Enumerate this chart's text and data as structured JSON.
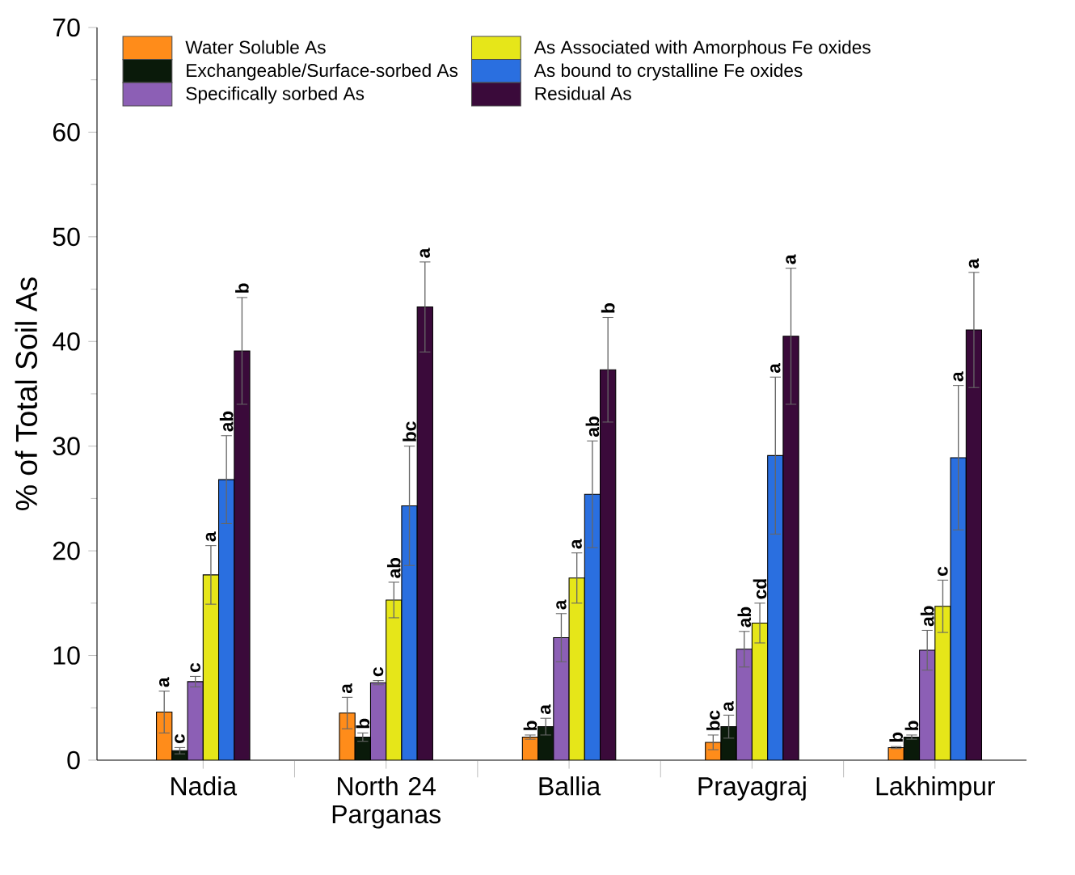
{
  "chart_data": {
    "type": "bar",
    "ylabel": "% of Total Soil As",
    "categories": [
      "Nadia",
      "North 24 Parganas",
      "Ballia",
      "Prayagraj",
      "Lakhimpur"
    ],
    "series": [
      {
        "name": "Water Soluble As",
        "color": "#ff8c1a",
        "values": [
          4.6,
          4.5,
          2.2,
          1.7,
          1.2
        ],
        "errors": [
          2.0,
          1.5,
          0.2,
          0.7,
          0.1
        ]
      },
      {
        "name": "Exchangeable/Surface-sorbed As",
        "color": "#0a1a0a",
        "values": [
          0.9,
          2.2,
          3.2,
          3.2,
          2.2
        ],
        "errors": [
          0.3,
          0.4,
          0.8,
          1.1,
          0.2
        ]
      },
      {
        "name": "Specifically sorbed As",
        "color": "#8c5fb5",
        "values": [
          7.5,
          7.4,
          11.7,
          10.6,
          10.5
        ],
        "errors": [
          0.5,
          0.2,
          2.3,
          1.7,
          1.9
        ]
      },
      {
        "name": "As Associated with Amorphous Fe oxides",
        "color": "#e6e619",
        "values": [
          17.7,
          15.3,
          17.4,
          13.1,
          14.7
        ],
        "errors": [
          2.8,
          1.7,
          2.4,
          1.9,
          2.5
        ]
      },
      {
        "name": "As bound to crystalline Fe oxides",
        "color": "#2a6fe0",
        "values": [
          26.8,
          24.3,
          25.4,
          29.1,
          28.9
        ],
        "errors": [
          4.2,
          5.7,
          5.1,
          7.5,
          6.9
        ]
      },
      {
        "name": "Residual As",
        "color": "#3a0a3a",
        "values": [
          39.1,
          43.3,
          37.3,
          40.5,
          41.1
        ],
        "errors": [
          5.1,
          4.3,
          5.0,
          6.5,
          5.5
        ]
      }
    ],
    "ylim": [
      0,
      70
    ],
    "yticks": [
      0,
      10,
      20,
      30,
      40,
      50,
      60,
      70
    ],
    "legend": "top left",
    "grid": false,
    "annotations": [
      "a",
      "c",
      "c",
      "a",
      "ab",
      "b",
      "a",
      "b",
      "c",
      "ab",
      "bc",
      "a",
      "b",
      "a",
      "a",
      "a",
      "ab",
      "b",
      "bc",
      "a",
      "ab",
      "cd",
      "a",
      "a",
      "b",
      "b",
      "ab",
      "c",
      "a",
      "a"
    ]
  }
}
